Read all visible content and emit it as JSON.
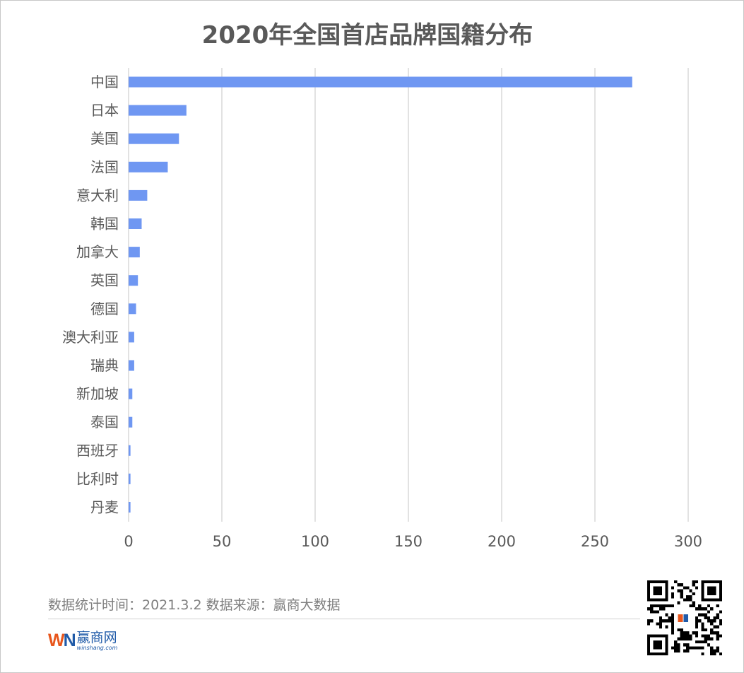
{
  "title": "2020年全国首店品牌国籍分布",
  "footer": {
    "note": "数据统计时间：2021.3.2  数据来源：赢商大数据",
    "logo_mark_w": "W",
    "logo_mark_n": "N",
    "logo_name": "赢商网",
    "logo_url": "winshang.com"
  },
  "colors": {
    "bar": "#6f97f2",
    "grid": "#d9d9d9",
    "label": "#595959"
  },
  "chart_data": {
    "type": "bar",
    "orientation": "horizontal",
    "title": "2020年全国首店品牌国籍分布",
    "categories": [
      "中国",
      "日本",
      "美国",
      "法国",
      "意大利",
      "韩国",
      "加拿大",
      "英国",
      "德国",
      "澳大利亚",
      "瑞典",
      "新加坡",
      "泰国",
      "西班牙",
      "比利时",
      "丹麦"
    ],
    "values": [
      270,
      31,
      27,
      21,
      10,
      7,
      6,
      5,
      4,
      3,
      3,
      2,
      2,
      1,
      1,
      1
    ],
    "xlim": [
      0,
      300
    ],
    "xticks": [
      0,
      50,
      100,
      150,
      200,
      250,
      300
    ],
    "grid": "vertical",
    "legend": "none"
  }
}
